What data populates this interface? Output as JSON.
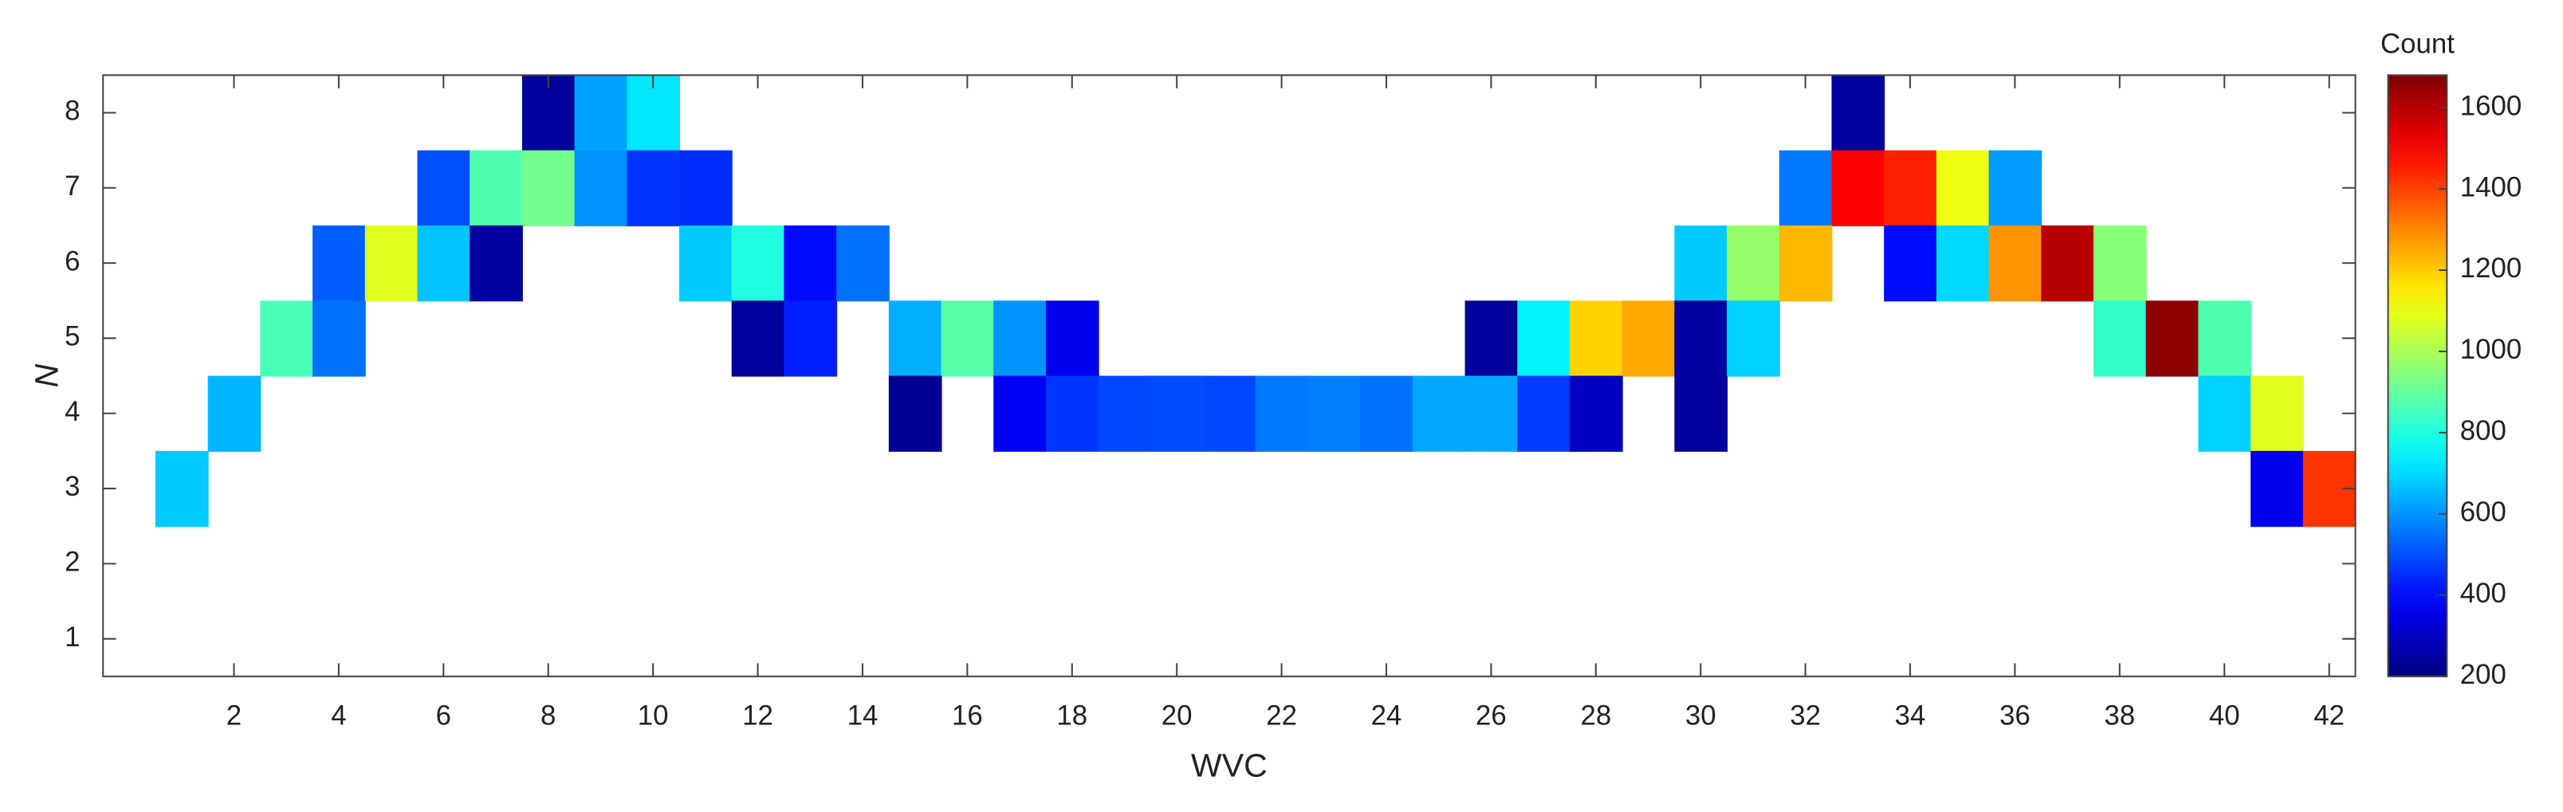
{
  "chart_data": {
    "type": "heatmap",
    "x_label": "WVC",
    "y_label": "N",
    "colorbar_title": "Count",
    "colormap": "jet",
    "xlim": [
      -0.5,
      42.5
    ],
    "ylim": [
      0.5,
      8.5
    ],
    "xticks": [
      2,
      4,
      6,
      8,
      10,
      12,
      14,
      16,
      18,
      20,
      22,
      24,
      26,
      28,
      30,
      32,
      34,
      36,
      38,
      40,
      42
    ],
    "yticks": [
      1,
      2,
      3,
      4,
      5,
      6,
      7,
      8
    ],
    "clim": [
      200,
      1680
    ],
    "cticks": [
      200,
      400,
      600,
      800,
      1000,
      1200,
      1400,
      1600
    ],
    "x": [
      8,
      9,
      10,
      33,
      6,
      7,
      8,
      9,
      10,
      11,
      32,
      33,
      34,
      35,
      36,
      4,
      5,
      6,
      7,
      11,
      12,
      13,
      14,
      30,
      31,
      32,
      34,
      35,
      36,
      37,
      38,
      3,
      4,
      12,
      13,
      15,
      16,
      17,
      18,
      26,
      27,
      28,
      29,
      30,
      31,
      38,
      39,
      40,
      2,
      15,
      17,
      18,
      19,
      20,
      21,
      22,
      23,
      24,
      25,
      26,
      27,
      28,
      30,
      40,
      41,
      1,
      41,
      42
    ],
    "y": [
      8,
      8,
      8,
      8,
      7,
      7,
      7,
      7,
      7,
      7,
      7,
      7,
      7,
      7,
      7,
      6,
      6,
      6,
      6,
      6,
      6,
      6,
      6,
      6,
      6,
      6,
      6,
      6,
      6,
      6,
      6,
      5,
      5,
      5,
      5,
      5,
      5,
      5,
      5,
      5,
      5,
      5,
      5,
      5,
      5,
      5,
      5,
      5,
      4,
      4,
      4,
      4,
      4,
      4,
      4,
      4,
      4,
      4,
      4,
      4,
      4,
      4,
      4,
      4,
      4,
      3,
      3,
      3
    ],
    "values": [
      240,
      620,
      720,
      240,
      500,
      870,
      920,
      600,
      460,
      450,
      560,
      1500,
      1450,
      1100,
      610,
      520,
      1080,
      670,
      250,
      680,
      800,
      400,
      550,
      680,
      970,
      1230,
      400,
      700,
      1280,
      1600,
      950,
      860,
      550,
      240,
      430,
      640,
      880,
      600,
      360,
      240,
      740,
      1190,
      1250,
      250,
      690,
      830,
      1660,
      870,
      650,
      230,
      370,
      460,
      490,
      495,
      490,
      560,
      570,
      550,
      630,
      630,
      470,
      300,
      240,
      690,
      1080,
      680,
      360,
      1420
    ]
  }
}
